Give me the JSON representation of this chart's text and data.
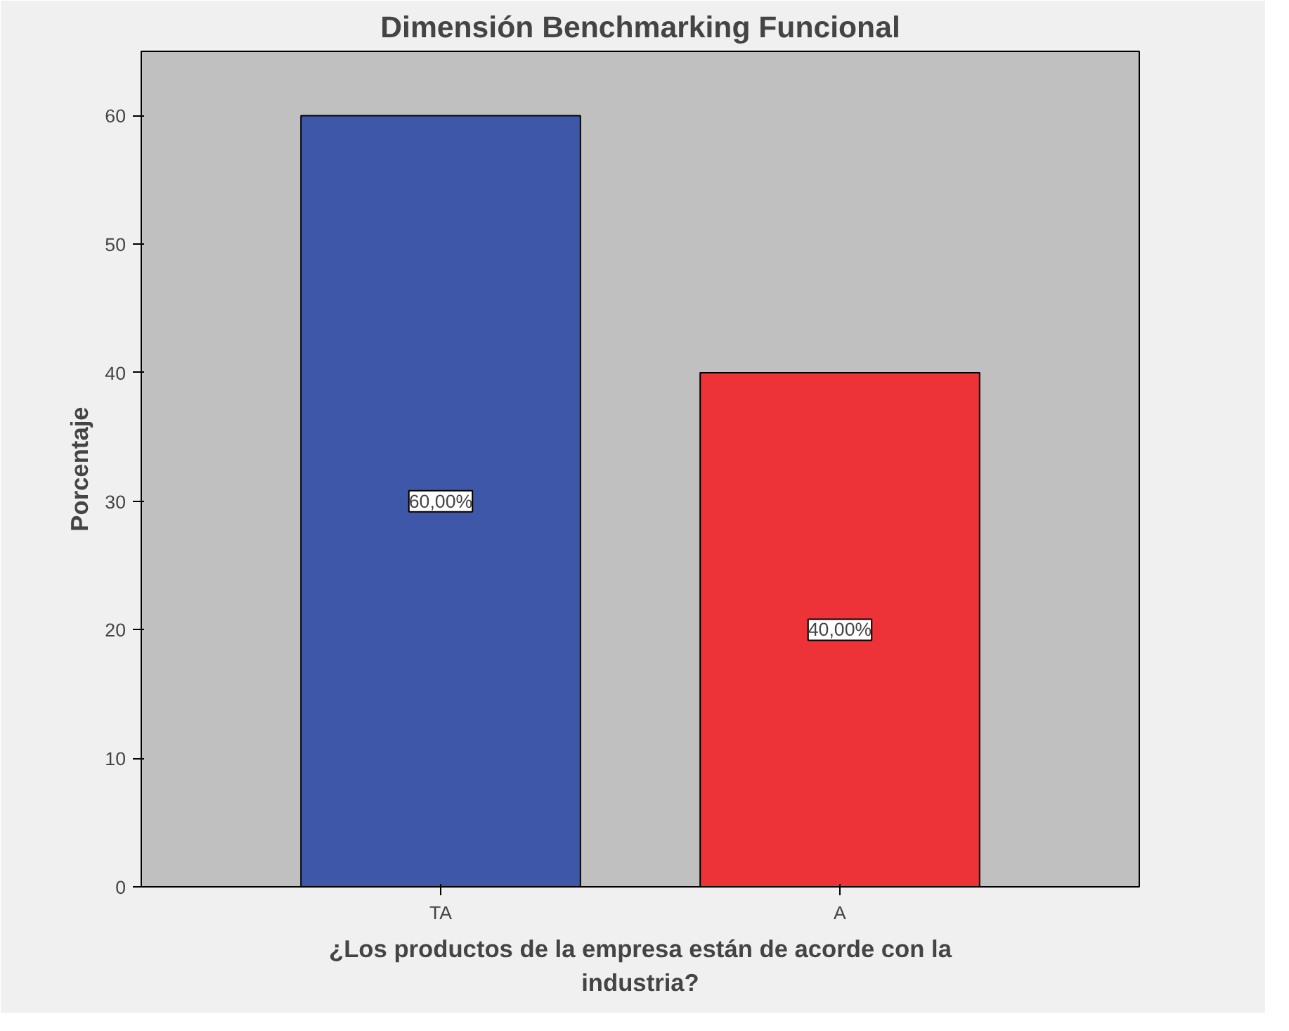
{
  "chart_data": {
    "type": "bar",
    "title": "Dimensión Benchmarking Funcional",
    "xlabel": "¿Los productos de la empresa están de acorde con la\nindustria?",
    "ylabel": "Porcentaje",
    "categories": [
      "TA",
      "A"
    ],
    "values": [
      60,
      40
    ],
    "colors": [
      "#3f57a8",
      "#ee3338"
    ],
    "value_labels": [
      "60,00%",
      "40,00%"
    ],
    "ylim": [
      0,
      65
    ],
    "yticks": [
      0,
      10,
      20,
      30,
      40,
      50,
      60
    ],
    "grid": false
  }
}
